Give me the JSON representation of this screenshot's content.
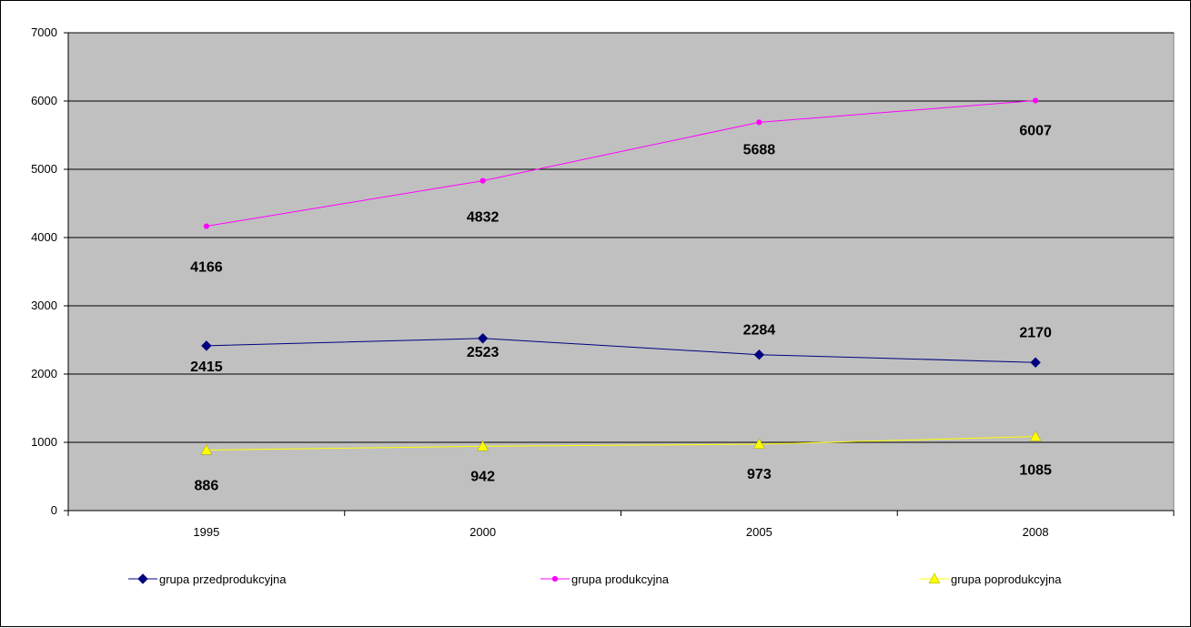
{
  "chart_data": {
    "type": "line",
    "categories": [
      "1995",
      "2000",
      "2005",
      "2008"
    ],
    "ylim": [
      0,
      7000
    ],
    "yticks": [
      0,
      1000,
      2000,
      3000,
      4000,
      5000,
      6000,
      7000
    ],
    "grid": true,
    "legend_position": "bottom",
    "colors": {
      "plot_background": "#c0c0c0",
      "gridline": "#000000"
    },
    "series": [
      {
        "name": "grupa przedprodukcyjna",
        "values": [
          2415,
          2523,
          2284,
          2170
        ],
        "labels": [
          "2415",
          "2523",
          "2284",
          "2170"
        ],
        "color": "#000080",
        "marker": "diamond"
      },
      {
        "name": "grupa produkcyjna",
        "values": [
          4166,
          4832,
          5688,
          6007
        ],
        "labels": [
          "4166",
          "4832",
          "5688",
          "6007"
        ],
        "color": "#ff00ff",
        "marker": "circle"
      },
      {
        "name": "grupa poprodukcyjna",
        "values": [
          886,
          942,
          973,
          1085
        ],
        "labels": [
          "886",
          "942",
          "973",
          "1085"
        ],
        "color": "#ffff00",
        "marker": "triangle"
      }
    ]
  }
}
